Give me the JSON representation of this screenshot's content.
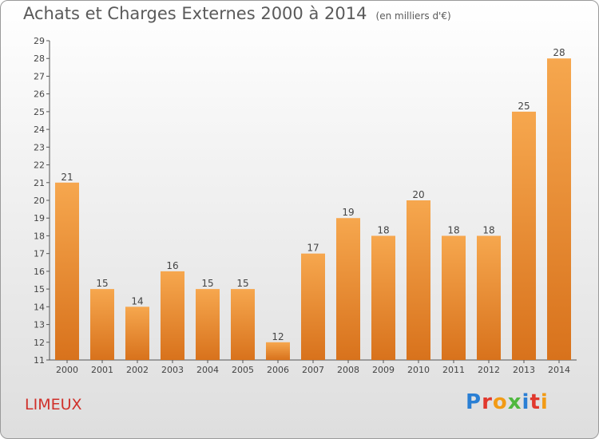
{
  "title": "Achats et Charges Externes 2000 à 2014",
  "unit_note": "(en milliers d'€)",
  "commune": "LIMEUX",
  "logo": {
    "text": "Proxiti",
    "colors": [
      "#2a7fd4",
      "#e1382d",
      "#f29b15",
      "#4fb83f",
      "#2a7fd4",
      "#e1382d",
      "#f29b15"
    ]
  },
  "colors": {
    "bar_top": "#f6a74e",
    "bar_bottom": "#d8721c",
    "commune": "#d0302a"
  },
  "chart_data": {
    "type": "bar",
    "title": "Achats et Charges Externes 2000 à 2014",
    "categories": [
      "2000",
      "2001",
      "2002",
      "2003",
      "2004",
      "2005",
      "2006",
      "2007",
      "2008",
      "2009",
      "2010",
      "2011",
      "2012",
      "2013",
      "2014"
    ],
    "values": [
      21,
      15,
      14,
      16,
      15,
      15,
      12,
      17,
      19,
      18,
      20,
      18,
      18,
      25,
      28
    ],
    "ylim": [
      11,
      29
    ],
    "yticks": [
      11,
      12,
      13,
      14,
      15,
      16,
      17,
      18,
      19,
      20,
      21,
      22,
      23,
      24,
      25,
      26,
      27,
      28,
      29
    ],
    "grid": false,
    "legend": "none"
  }
}
